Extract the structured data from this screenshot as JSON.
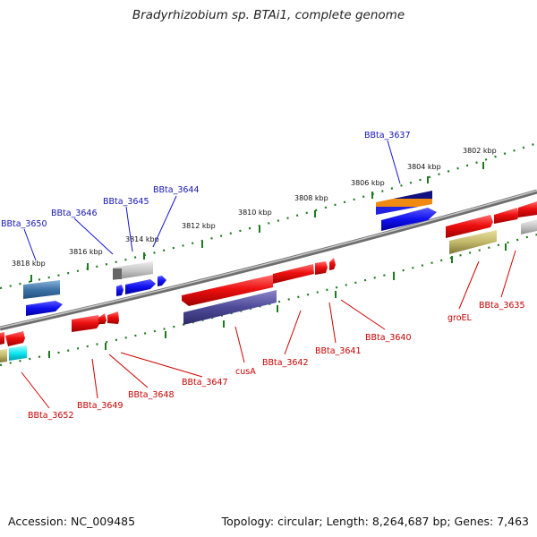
{
  "title": "Bradyrhizobium sp. BTAi1, complete genome",
  "footer": {
    "accession": "Accession: NC_009485",
    "topology": "Topology: circular; Length: 8,264,687 bp; Genes: 7,463"
  },
  "scale_labels": [
    "3818 kbp",
    "3816 kbp",
    "3814 kbp",
    "3812 kbp",
    "3810 kbp",
    "3808 kbp",
    "3806 kbp",
    "3804 kbp",
    "3802 kbp"
  ],
  "top_gene_labels": [
    "BBta_3650",
    "BBta_3646",
    "BBta_3645",
    "BBta_3644",
    "BBta_3637"
  ],
  "bottom_gene_labels": [
    "BBta_3652",
    "BBta_3649",
    "BBta_3648",
    "BBta_3647",
    "cusA",
    "BBta_3642",
    "BBta_3641",
    "BBta_3640",
    "groEL",
    "BBta_3635"
  ],
  "colors": {
    "backbone": "#8a8a8a",
    "gene_red": "#e00000",
    "gene_blue": "#1010e0",
    "tick_green": "#1e7a1e",
    "label_blue": "#1414b4",
    "label_red": "#c80000"
  }
}
